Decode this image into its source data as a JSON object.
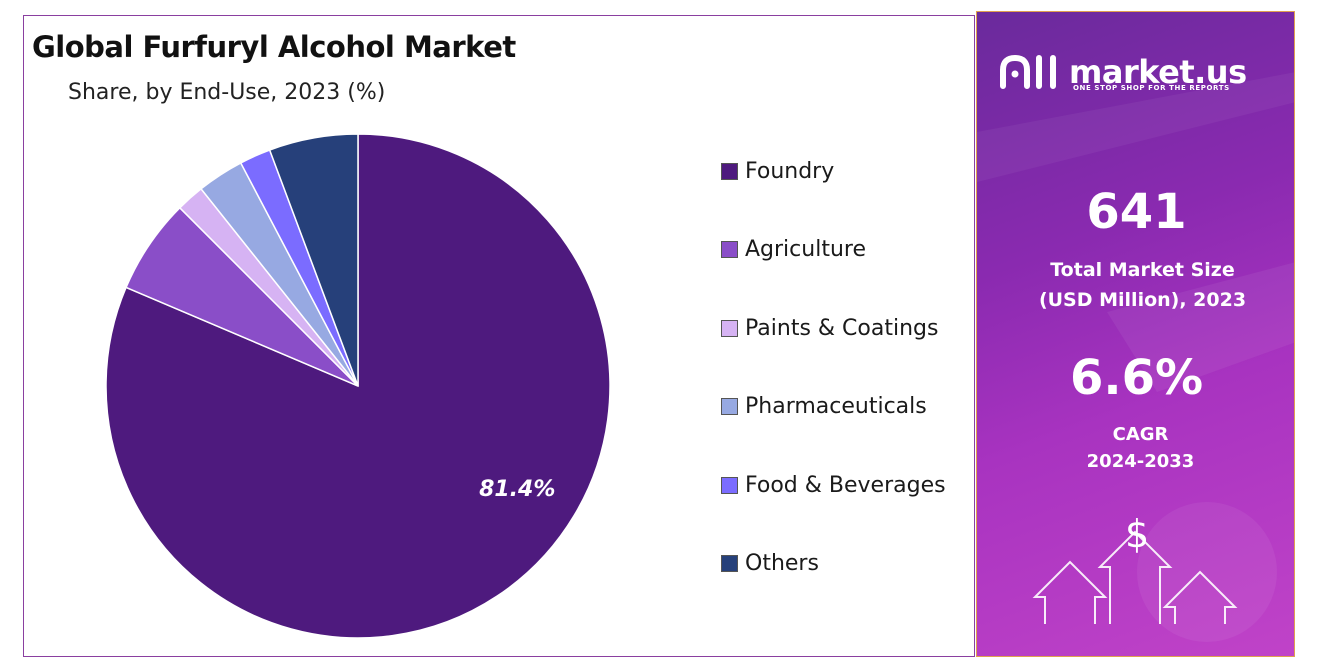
{
  "chart_data": {
    "type": "pie",
    "title": "Global Furfuryl Alcohol Market",
    "subtitle": "Share, by End-Use, 2023 (%)",
    "series": [
      {
        "name": "Foundry",
        "value": 81.4,
        "color": "#4e1a7e",
        "label": "81.4%"
      },
      {
        "name": "Agriculture",
        "value": 6.1,
        "color": "#8a4ec8",
        "label": ""
      },
      {
        "name": "Paints & Coatings",
        "value": 1.8,
        "color": "#d6b3f3",
        "label": ""
      },
      {
        "name": "Pharmaceuticals",
        "value": 3.0,
        "color": "#97a9e2",
        "label": ""
      },
      {
        "name": "Food & Beverages",
        "value": 2.0,
        "color": "#7b6cff",
        "label": ""
      },
      {
        "name": "Others",
        "value": 5.7,
        "color": "#26407a",
        "label": ""
      }
    ],
    "legend_position": "right"
  },
  "brand": {
    "name": "market.us",
    "tagline": "ONE STOP SHOP FOR THE REPORTS",
    "logo_icon": "market-us-logo-icon"
  },
  "stats": {
    "market_size": "641",
    "market_size_label_1": "Total Market Size",
    "market_size_label_2": "(USD Million), 2023",
    "cagr": "6.6%",
    "cagr_label_1": "CAGR",
    "cagr_label_2": "2024-2033"
  },
  "decor": {
    "dollar_symbol": "$"
  },
  "colors": {
    "panel_border": "#8a3fa0",
    "side_panel": "#9a30b8",
    "text_white": "#ffffff"
  }
}
